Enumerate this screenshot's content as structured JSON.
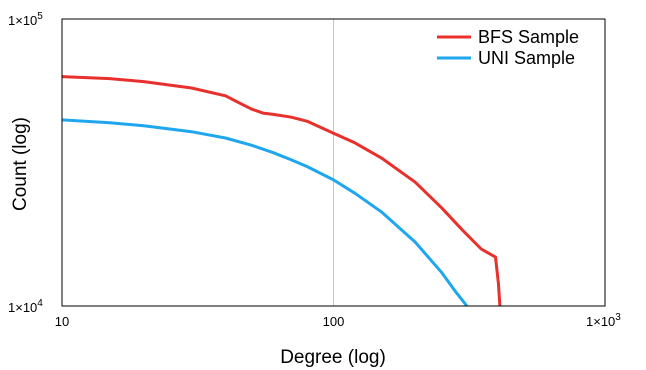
{
  "chart_data": {
    "type": "line",
    "xlabel": "Degree (log)",
    "ylabel": "Count (log)",
    "x_scale": "log",
    "y_scale": "log",
    "xlim": [
      10,
      1000
    ],
    "ylim": [
      10000,
      100000
    ],
    "x_ticks": [
      {
        "value": 10,
        "label": "10"
      },
      {
        "value": 100,
        "label": "100"
      },
      {
        "value": 1000,
        "label": "1×10",
        "exp": "3"
      }
    ],
    "y_ticks": [
      {
        "value": 10000,
        "label": "1×10",
        "exp": "4"
      },
      {
        "value": 100000,
        "label": "1×10",
        "exp": "5"
      }
    ],
    "grid": "vertical line at x=100",
    "legend": {
      "position": "top-right"
    },
    "series": [
      {
        "name": "BFS Sample",
        "color": "#e8302c",
        "x": [
          10,
          15,
          20,
          30,
          40,
          45,
          50,
          55,
          60,
          70,
          80,
          100,
          120,
          150,
          200,
          250,
          300,
          350,
          395,
          405,
          410
        ],
        "y": [
          63000,
          62000,
          60500,
          57500,
          54000,
          51000,
          48500,
          47000,
          46500,
          45500,
          44000,
          40000,
          37000,
          32800,
          27000,
          22000,
          18300,
          15800,
          14800,
          12000,
          10000
        ]
      },
      {
        "name": "UNI Sample",
        "color": "#1ea7ee",
        "x": [
          10,
          15,
          20,
          30,
          40,
          50,
          60,
          70,
          80,
          100,
          120,
          150,
          200,
          250,
          280,
          300,
          310
        ],
        "y": [
          44500,
          43500,
          42500,
          40500,
          38500,
          36300,
          34200,
          32300,
          30600,
          27500,
          24700,
          21300,
          16700,
          13100,
          11300,
          10400,
          10000
        ]
      }
    ]
  }
}
